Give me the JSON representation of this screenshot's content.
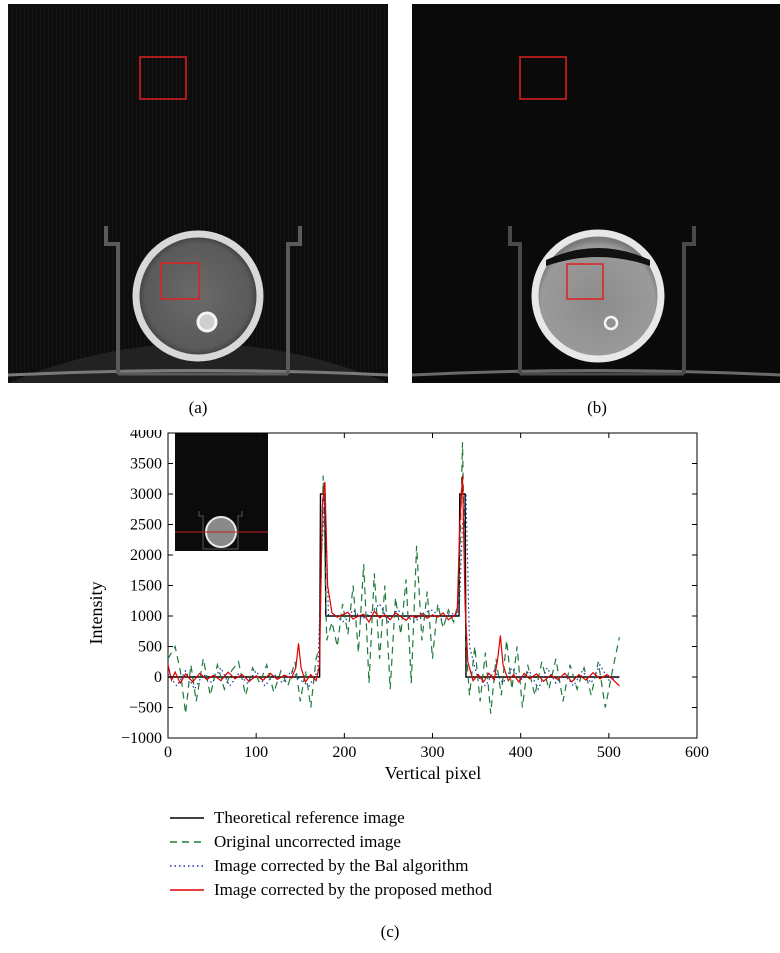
{
  "captions": {
    "a": "(a)",
    "b": "(b)",
    "c": "(c)"
  },
  "colors": {
    "theoretical": "#000000",
    "original": "#1e7a3a",
    "bal": "#2233aa",
    "proposed": "#e00000",
    "roi_box": "#e02020"
  },
  "chart_data": {
    "type": "line",
    "xlabel": "Vertical pixel",
    "ylabel": "Intensity",
    "xlim": [
      0,
      600
    ],
    "ylim": [
      -1000,
      4000
    ],
    "xticks": [
      0,
      100,
      200,
      300,
      400,
      500,
      600
    ],
    "yticks": [
      -1000,
      -500,
      0,
      500,
      1000,
      1500,
      2000,
      2500,
      3000,
      3500,
      4000
    ],
    "xtick_labels": [
      "0",
      "100",
      "200",
      "300",
      "400",
      "500",
      "600"
    ],
    "ytick_labels": [
      "−1000",
      "−500",
      "0",
      "500",
      "1000",
      "1500",
      "2000",
      "2500",
      "3000",
      "3500",
      "4000"
    ],
    "grid": false,
    "legend_position": "below",
    "series": [
      {
        "name": "Theoretical reference image",
        "style": "solid",
        "x": [
          0,
          172,
          173,
          178,
          179,
          330,
          331,
          337,
          338,
          512
        ],
        "y": [
          0,
          0,
          3000,
          3000,
          1000,
          1000,
          3000,
          3000,
          0,
          0
        ]
      },
      {
        "name": "Original uncorrected image",
        "style": "dashed",
        "x": [
          0,
          8,
          14,
          20,
          26,
          32,
          40,
          48,
          56,
          64,
          72,
          80,
          88,
          96,
          104,
          112,
          120,
          128,
          136,
          144,
          150,
          156,
          162,
          168,
          172,
          176,
          180,
          186,
          192,
          198,
          204,
          210,
          216,
          222,
          228,
          234,
          240,
          246,
          252,
          258,
          264,
          270,
          276,
          282,
          288,
          294,
          300,
          306,
          312,
          318,
          324,
          330,
          334,
          338,
          342,
          348,
          354,
          360,
          366,
          372,
          378,
          384,
          390,
          396,
          402,
          408,
          416,
          424,
          432,
          440,
          448,
          456,
          464,
          472,
          480,
          488,
          496,
          504,
          512
        ],
        "y": [
          300,
          500,
          100,
          -600,
          200,
          -400,
          300,
          -300,
          200,
          -200,
          100,
          250,
          -300,
          150,
          -100,
          200,
          -250,
          100,
          -150,
          250,
          -400,
          100,
          -500,
          300,
          500,
          3300,
          600,
          900,
          500,
          1200,
          700,
          1500,
          400,
          1850,
          -100,
          1700,
          300,
          1500,
          -200,
          1300,
          700,
          1600,
          -100,
          2150,
          600,
          1400,
          300,
          1200,
          800,
          1100,
          900,
          1300,
          3850,
          500,
          -300,
          500,
          -400,
          400,
          -600,
          300,
          -300,
          600,
          -200,
          500,
          -500,
          200,
          -300,
          250,
          -200,
          300,
          -400,
          200,
          -200,
          150,
          -300,
          250,
          -500,
          100,
          650
        ]
      },
      {
        "name": "Image corrected by the Bal algorithm",
        "style": "dotted",
        "x": [
          0,
          10,
          20,
          30,
          40,
          50,
          60,
          70,
          80,
          90,
          100,
          110,
          120,
          130,
          140,
          150,
          160,
          170,
          174,
          178,
          182,
          190,
          200,
          210,
          220,
          230,
          240,
          250,
          260,
          270,
          280,
          290,
          300,
          310,
          320,
          330,
          334,
          338,
          342,
          350,
          360,
          370,
          380,
          390,
          400,
          410,
          420,
          430,
          440,
          450,
          460,
          470,
          480,
          490,
          500,
          512
        ],
        "y": [
          50,
          -150,
          100,
          -200,
          50,
          -100,
          150,
          -150,
          50,
          -100,
          100,
          -150,
          50,
          -100,
          100,
          -50,
          -150,
          100,
          2000,
          3000,
          1000,
          1000,
          900,
          1100,
          950,
          1050,
          1200,
          900,
          1100,
          1000,
          900,
          1050,
          1100,
          950,
          1050,
          1000,
          2500,
          3000,
          500,
          50,
          -150,
          100,
          -100,
          150,
          -50,
          100,
          -200,
          150,
          -100,
          50,
          -150,
          100,
          -100,
          200,
          -50,
          0
        ]
      },
      {
        "name": "Image corrected by the proposed method",
        "style": "solid",
        "x": [
          0,
          4,
          8,
          14,
          20,
          28,
          36,
          44,
          52,
          60,
          68,
          76,
          84,
          92,
          100,
          108,
          116,
          124,
          132,
          140,
          145,
          148,
          151,
          156,
          162,
          168,
          172,
          175,
          178,
          181,
          186,
          192,
          198,
          204,
          210,
          216,
          222,
          228,
          234,
          240,
          246,
          252,
          258,
          264,
          270,
          276,
          282,
          288,
          294,
          300,
          306,
          312,
          318,
          324,
          328,
          331,
          334,
          337,
          340,
          346,
          352,
          358,
          364,
          370,
          374,
          377,
          380,
          386,
          392,
          398,
          404,
          410,
          418,
          426,
          434,
          442,
          450,
          458,
          466,
          474,
          482,
          490,
          498,
          506,
          512
        ],
        "y": [
          200,
          -50,
          80,
          -100,
          50,
          -80,
          60,
          -40,
          30,
          -60,
          80,
          -30,
          40,
          -70,
          20,
          -50,
          60,
          -40,
          30,
          -20,
          150,
          550,
          150,
          -80,
          40,
          -60,
          200,
          2800,
          3200,
          1500,
          1050,
          980,
          1020,
          1060,
          950,
          1000,
          1030,
          900,
          1080,
          970,
          1020,
          940,
          1050,
          990,
          930,
          1010,
          970,
          1040,
          960,
          1020,
          980,
          1050,
          940,
          1000,
          1060,
          2500,
          3300,
          1200,
          250,
          -60,
          40,
          -80,
          60,
          -50,
          300,
          680,
          200,
          -60,
          40,
          -80,
          60,
          -30,
          50,
          -70,
          30,
          -40,
          60,
          -80,
          40,
          -50,
          70,
          -30,
          40,
          -60,
          -150
        ]
      }
    ]
  }
}
